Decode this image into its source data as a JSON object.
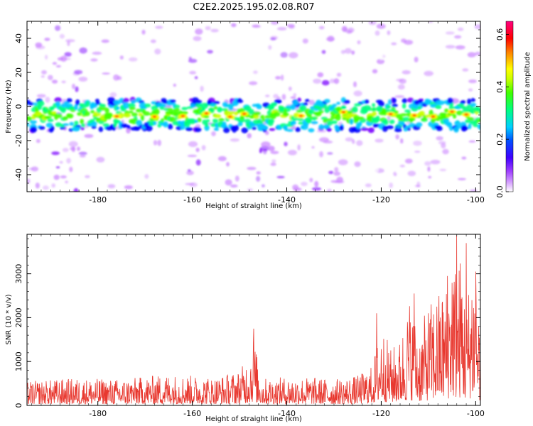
{
  "figure": {
    "title": "C2E2.2025.195.02.08.R07"
  },
  "chart_data": [
    {
      "type": "heatmap",
      "title": "C2E2.2025.195.02.08.R07",
      "xlabel": "Height of straight line (km)",
      "ylabel": "Frequency (Hz)",
      "colorbar_label": "Normalized spectral amplitude",
      "xlim": [
        -195,
        -99
      ],
      "ylim": [
        -50,
        50
      ],
      "x_ticks": [
        -180,
        -160,
        -140,
        -120,
        -100
      ],
      "y_ticks": [
        -40,
        -20,
        0,
        20,
        40
      ],
      "colorbar_range": [
        0.0,
        0.65
      ],
      "colorbar_ticks": [
        0.0,
        0.2,
        0.4,
        0.6
      ],
      "colormap": [
        "#ffffff",
        "#c77dff",
        "#7a00ff",
        "#0000ff",
        "#00c8ff",
        "#00ff80",
        "#40ff00",
        "#c8ff00",
        "#ffff00",
        "#ff8000",
        "#ff0000",
        "#ff0080"
      ],
      "band": {
        "center_hz": -5,
        "half_width_hz": 9,
        "peak_amplitude": 0.62
      },
      "hotspots_x": [
        -176,
        -168,
        -162,
        -157,
        -152,
        -149,
        -137,
        -128,
        -118,
        -113,
        -109,
        -105,
        -102
      ]
    },
    {
      "type": "line",
      "xlabel": "Height of straight line (km)",
      "ylabel": "SNR (10 * v/v)",
      "xlim": [
        -195,
        -99
      ],
      "ylim": [
        0,
        3900
      ],
      "x_ticks": [
        -180,
        -160,
        -140,
        -120,
        -100
      ],
      "y_ticks": [
        0,
        1000,
        2000,
        3000
      ],
      "color": "#e8382f",
      "envelope": {
        "x": [
          -195,
          -185,
          -175,
          -165,
          -155,
          -150,
          -148,
          -147,
          -146,
          -145,
          -140,
          -135,
          -130,
          -125,
          -122,
          -121,
          -120,
          -118,
          -116,
          -114,
          -112,
          -110,
          -108,
          -106,
          -105,
          -104,
          -103,
          -102,
          -101,
          -100,
          -99
        ],
        "y": [
          550,
          620,
          600,
          720,
          650,
          800,
          1150,
          1650,
          900,
          620,
          650,
          650,
          600,
          680,
          900,
          1350,
          1900,
          1300,
          1500,
          2450,
          1700,
          2300,
          2600,
          2800,
          3900,
          3100,
          3600,
          2100,
          3400,
          3300,
          1900
        ]
      },
      "peaks": [
        {
          "x": -147,
          "y": 1750
        },
        {
          "x": -121,
          "y": 2100
        },
        {
          "x": -113,
          "y": 2550
        },
        {
          "x": -106,
          "y": 2950
        },
        {
          "x": -104,
          "y": 3880
        },
        {
          "x": -102,
          "y": 3700
        },
        {
          "x": -100,
          "y": 3050
        }
      ]
    }
  ]
}
